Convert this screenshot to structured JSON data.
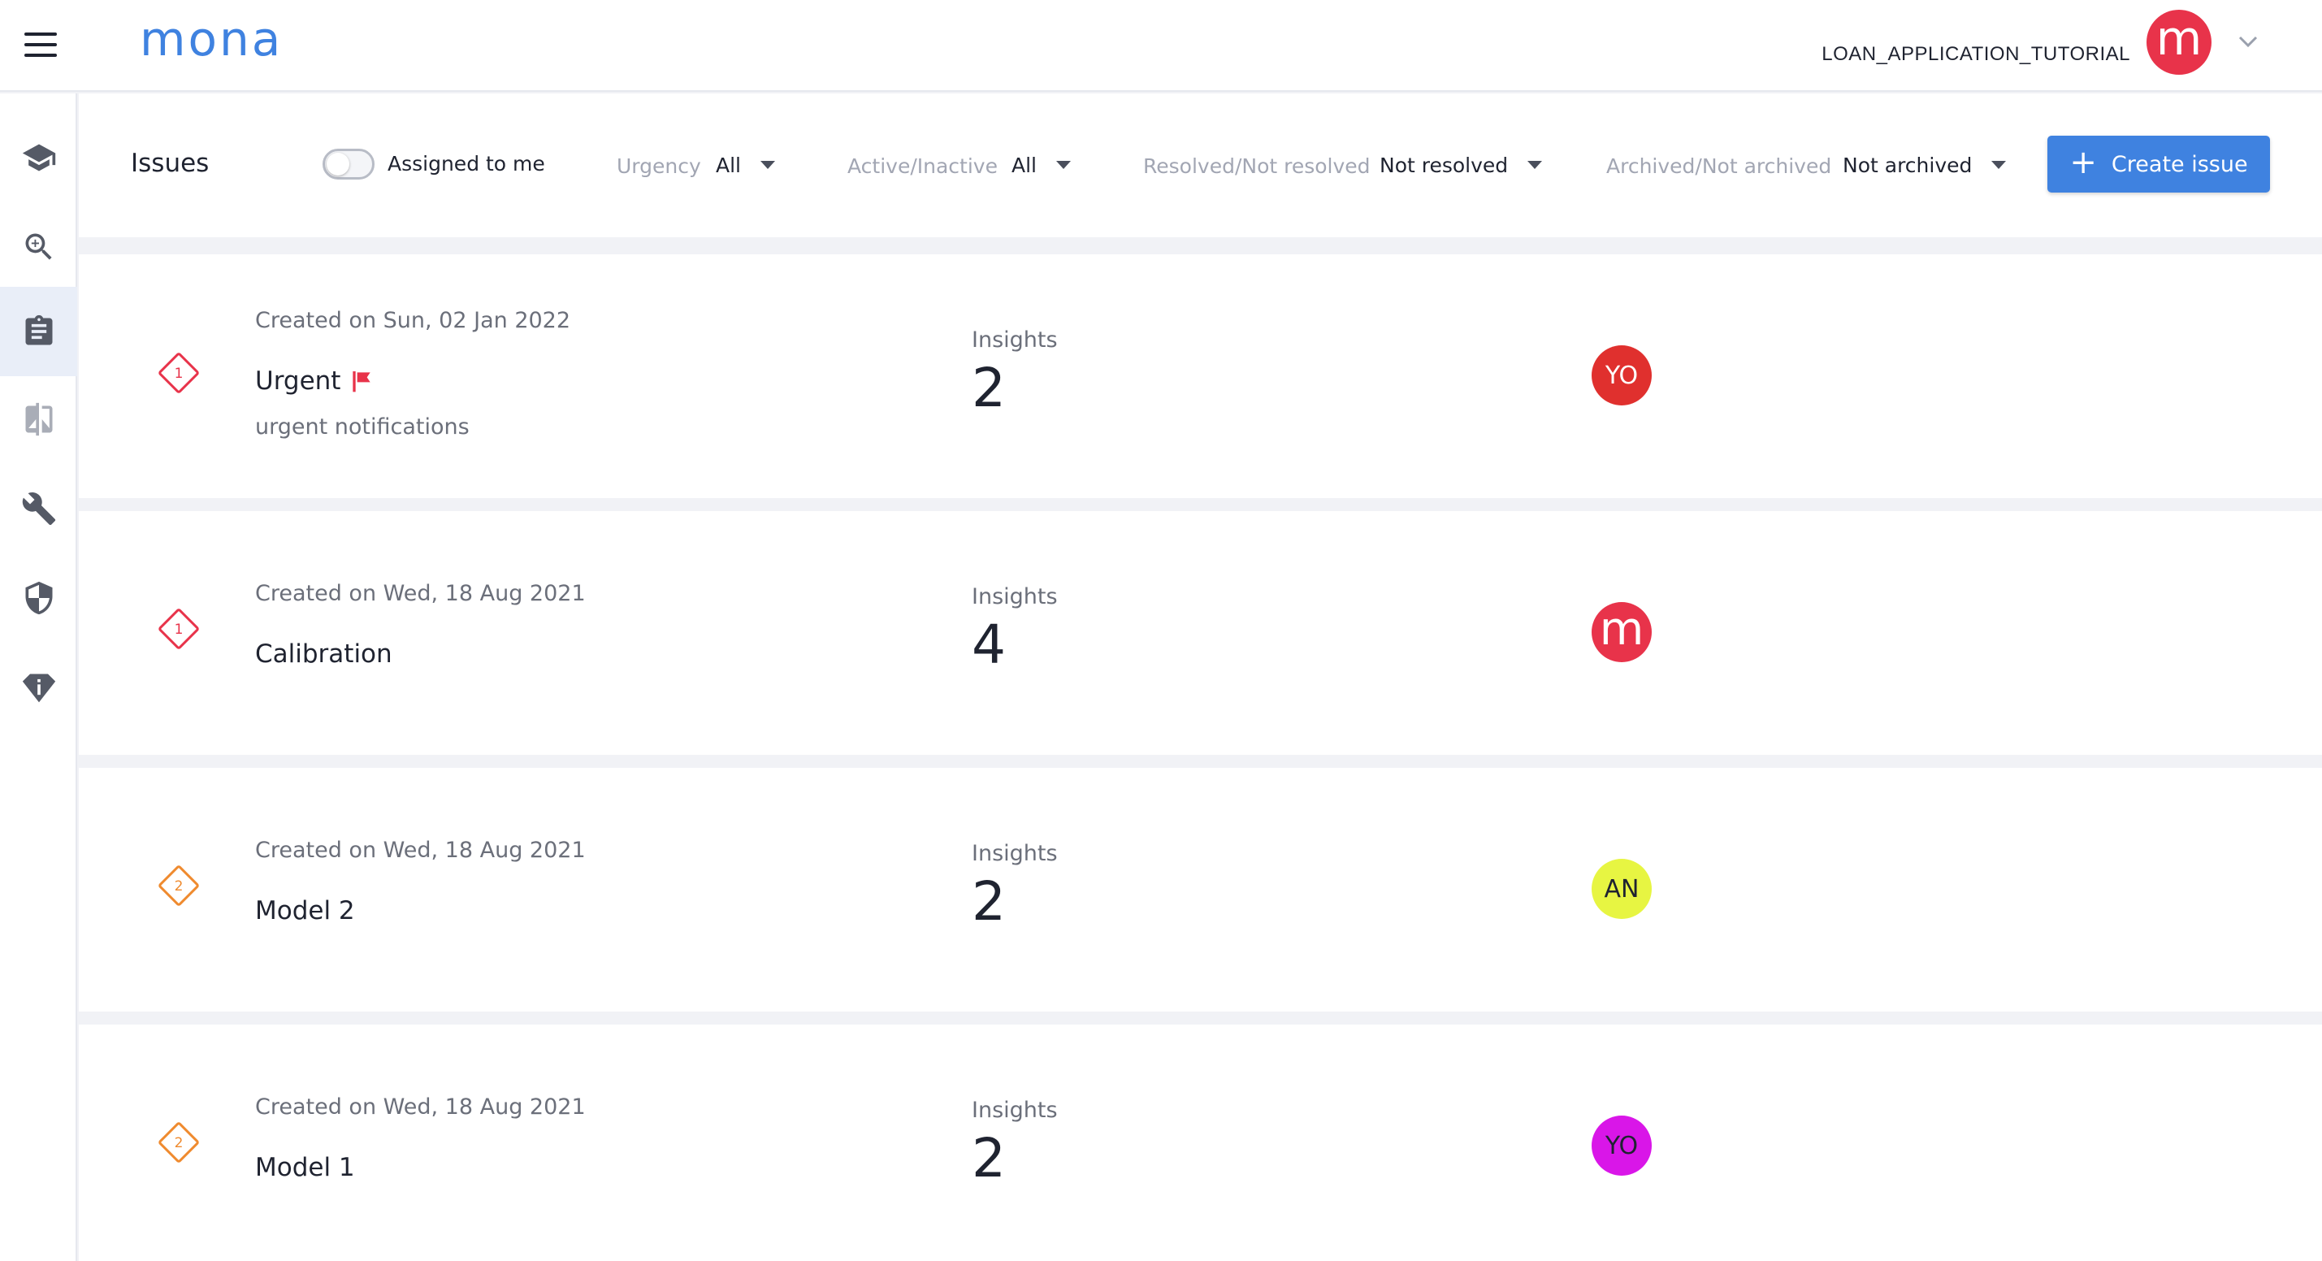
{
  "header": {
    "logo": "mona",
    "project_name": "LOAN_APPLICATION_TUTORIAL",
    "account_avatar": "m",
    "account_avatar_color": "#e8334a",
    "accent_color": "#3f82e0"
  },
  "sidebar": {
    "items": [
      {
        "icon": "graduation-cap-icon",
        "active": false
      },
      {
        "icon": "zoom-in-icon",
        "active": false
      },
      {
        "icon": "clipboard-icon",
        "active": true
      },
      {
        "icon": "compare-icon",
        "active": false
      },
      {
        "icon": "wrench-icon",
        "active": false
      },
      {
        "icon": "shield-icon",
        "active": false
      },
      {
        "icon": "info-badge-icon",
        "active": false
      }
    ]
  },
  "filters": {
    "title": "Issues",
    "assigned_to_me_label": "Assigned to me",
    "assigned_to_me_on": false,
    "urgency_label": "Urgency",
    "urgency_value": "All",
    "active_label": "Active/Inactive",
    "active_value": "All",
    "resolved_label": "Resolved/Not resolved",
    "resolved_value": "Not resolved",
    "archived_label": "Archived/Not archived",
    "archived_value": "Not archived",
    "create_label": "Create issue"
  },
  "issues": [
    {
      "urgency": "1",
      "urgency_color": "#e8334a",
      "created": "Created on Sun, 02 Jan 2022",
      "name": "Urgent",
      "flagged": true,
      "description": "urgent notifications",
      "insights_label": "Insights",
      "insights": "2",
      "assignee": "YO",
      "assignee_color": "#e0302e",
      "assignee_text_color": "#ffffff"
    },
    {
      "urgency": "1",
      "urgency_color": "#e8334a",
      "created": "Created on Wed, 18 Aug 2021",
      "name": "Calibration",
      "flagged": false,
      "description": "",
      "insights_label": "Insights",
      "insights": "4",
      "assignee": "m",
      "assignee_color": "#e8334a",
      "assignee_text_color": "#ffffff"
    },
    {
      "urgency": "2",
      "urgency_color": "#ef8a2e",
      "created": "Created on Wed, 18 Aug 2021",
      "name": "Model 2",
      "flagged": false,
      "description": "",
      "insights_label": "Insights",
      "insights": "2",
      "assignee": "AN",
      "assignee_color": "#e7f542",
      "assignee_text_color": "#1f2330"
    },
    {
      "urgency": "2",
      "urgency_color": "#ef8a2e",
      "created": "Created on Wed, 18 Aug 2021",
      "name": "Model 1",
      "flagged": false,
      "description": "",
      "insights_label": "Insights",
      "insights": "2",
      "assignee": "YO",
      "assignee_color": "#d916e8",
      "assignee_text_color": "#1f2330"
    }
  ]
}
